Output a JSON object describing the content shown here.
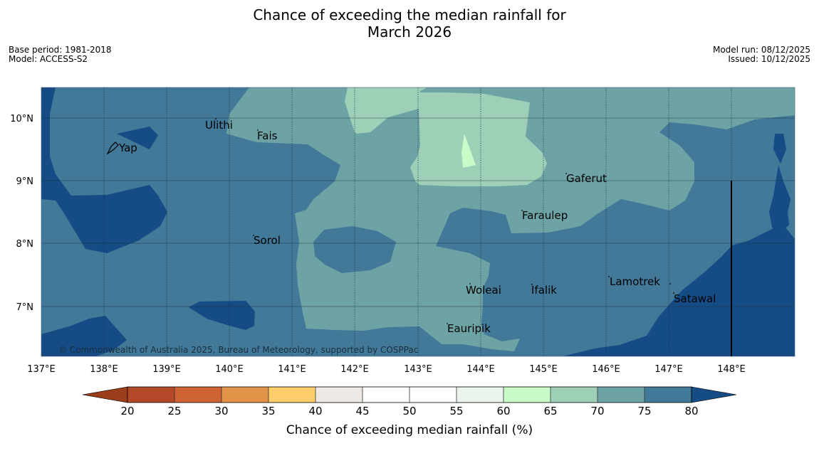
{
  "title": {
    "line1": "Chance of exceeding the median rainfall for",
    "line2": "March 2026"
  },
  "meta": {
    "base_period": "Base period: 1981-2018",
    "model": "Model: ACCESS-S2",
    "model_run": "Model run: 08/12/2025",
    "issued": "Issued: 10/12/2025"
  },
  "axes": {
    "lon_labels": [
      "137°E",
      "138°E",
      "139°E",
      "140°E",
      "141°E",
      "142°E",
      "143°E",
      "144°E",
      "145°E",
      "146°E",
      "147°E",
      "148°E"
    ],
    "lat_labels": [
      "10°N",
      "9°N",
      "8°N",
      "7°N"
    ]
  },
  "places": [
    {
      "name": "Yap"
    },
    {
      "name": "Ulithi"
    },
    {
      "name": "Fais"
    },
    {
      "name": "Gaferut"
    },
    {
      "name": "Faraulep"
    },
    {
      "name": "Sorol"
    },
    {
      "name": "Lamotrek"
    },
    {
      "name": "Woleai"
    },
    {
      "name": "Ifalik"
    },
    {
      "name": "Satawal"
    },
    {
      "name": "Eauripik"
    }
  ],
  "copyright": "© Commonwealth of Australia 2025, Bureau of Meteorology, supported by COSPPac",
  "colorbar": {
    "title": "Chance of exceeding median rainfall (%)",
    "ticks": [
      "20",
      "25",
      "30",
      "35",
      "40",
      "45",
      "50",
      "55",
      "60",
      "65",
      "70",
      "75",
      "80"
    ],
    "colors": {
      "below20": "#9c3d1c",
      "b20_25": "#b4492a",
      "b25_30": "#cf6233",
      "b30_35": "#e39347",
      "b35_40": "#fdce6a",
      "b40_45": "#ede8e3",
      "b45_50": "#ffffff",
      "b50_55": "#ffffff",
      "b55_60": "#eaf4ec",
      "b60_65": "#c8fbc8",
      "b65_70": "#9dd0b7",
      "b70_75": "#6ea3a5",
      "b75_80": "#427898",
      "above80": "#154c85"
    }
  }
}
